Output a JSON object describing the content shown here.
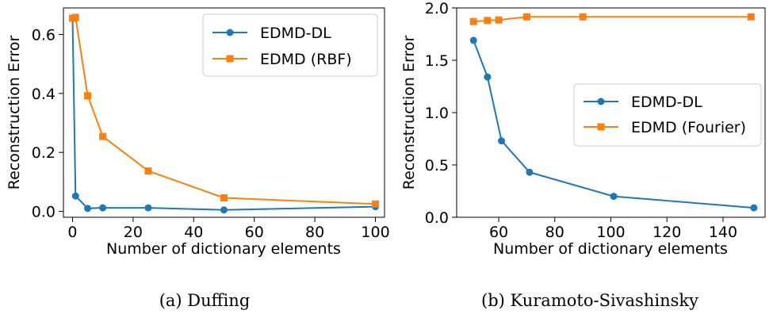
{
  "chart_data": [
    {
      "type": "line",
      "caption": "(a) Duffing",
      "xlabel": "Number of dictionary elements",
      "ylabel": "Reconstruction Error",
      "xlim": [
        -3,
        103
      ],
      "ylim": [
        -0.02,
        0.69
      ],
      "xticks": [
        0,
        20,
        40,
        60,
        80,
        100
      ],
      "xtick_labels": [
        "0",
        "20",
        "40",
        "60",
        "80",
        "100"
      ],
      "yticks": [
        0.0,
        0.2,
        0.4,
        0.6
      ],
      "ytick_labels": [
        "0.0",
        "0.2",
        "0.4",
        "0.6"
      ],
      "grid": false,
      "legend_position": "upper right",
      "series": [
        {
          "name": "EDMD-DL",
          "color": "#1f77b4",
          "marker": "circle",
          "x": [
            0,
            1,
            5,
            10,
            25,
            50,
            100
          ],
          "y": [
            0.655,
            0.052,
            0.01,
            0.012,
            0.012,
            0.005,
            0.016
          ]
        },
        {
          "name": "EDMD (RBF)",
          "color": "#ff7f0e",
          "marker": "square",
          "x": [
            0,
            1,
            5,
            10,
            25,
            50,
            100
          ],
          "y": [
            0.655,
            0.658,
            0.392,
            0.254,
            0.137,
            0.046,
            0.025
          ]
        }
      ]
    },
    {
      "type": "line",
      "caption": "(b) Kuramoto-Sivashinsky",
      "xlabel": "Number of dictionary elements",
      "ylabel": "Reconstruction Error",
      "xlim": [
        45,
        155
      ],
      "ylim": [
        0.0,
        2.0
      ],
      "xticks": [
        60,
        80,
        100,
        120,
        140
      ],
      "xtick_labels": [
        "60",
        "80",
        "100",
        "120",
        "140"
      ],
      "yticks": [
        0.0,
        0.5,
        1.0,
        1.5,
        2.0
      ],
      "ytick_labels": [
        "0.0",
        "0.5",
        "1.0",
        "1.5",
        "2.0"
      ],
      "grid": false,
      "legend_position": "center right",
      "series": [
        {
          "name": "EDMD-DL",
          "color": "#1f77b4",
          "marker": "circle",
          "x": [
            51,
            56,
            61,
            71,
            101,
            151
          ],
          "y": [
            1.69,
            1.34,
            0.73,
            0.43,
            0.2,
            0.09
          ]
        },
        {
          "name": "EDMD (Fourier)",
          "color": "#ff7f0e",
          "marker": "square",
          "x": [
            51,
            56,
            60,
            70,
            90,
            150
          ],
          "y": [
            1.87,
            1.88,
            1.885,
            1.915,
            1.915,
            1.915
          ]
        }
      ]
    }
  ]
}
